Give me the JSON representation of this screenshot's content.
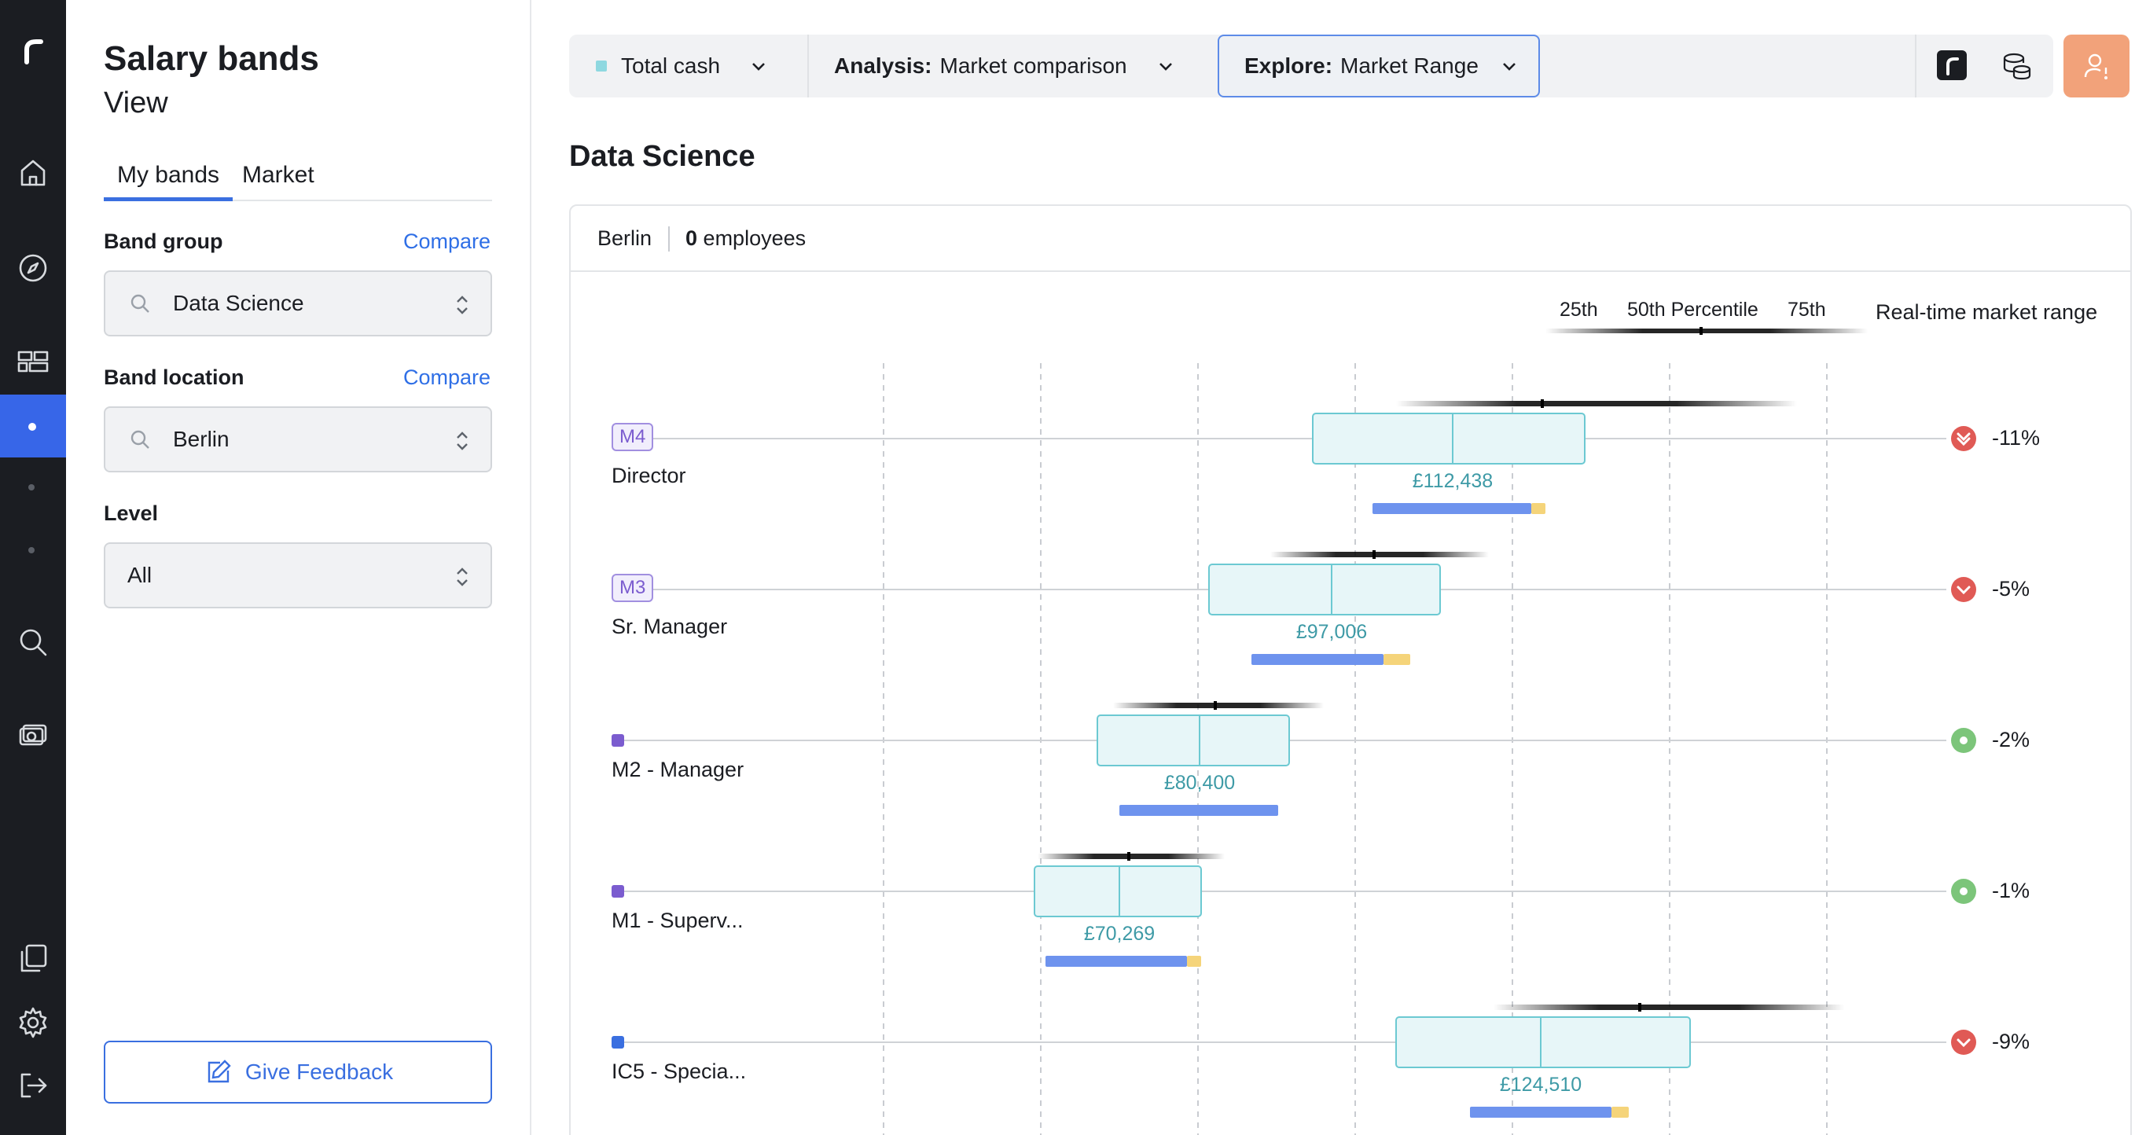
{
  "panel": {
    "title": "Salary bands",
    "subtitle": "View",
    "tabs": [
      "My bands",
      "Market"
    ],
    "band_group": {
      "label": "Band group",
      "compare": "Compare",
      "value": "Data Science"
    },
    "band_location": {
      "label": "Band location",
      "compare": "Compare",
      "value": "Berlin"
    },
    "level": {
      "label": "Level",
      "value": "All"
    },
    "feedback": "Give Feedback"
  },
  "rail": {
    "icons": [
      "logo-icon",
      "home-icon",
      "compass-icon",
      "bands-icon",
      "search-icon",
      "cash-icon",
      "documents-icon",
      "gear-icon",
      "logout-icon"
    ]
  },
  "toolbar": {
    "metric": "Total cash",
    "analysis_key": "Analysis:",
    "analysis_value": "Market comparison",
    "explore_key": "Explore:",
    "explore_value": "Market Range",
    "metric_color": "#8ed8e0"
  },
  "main": {
    "title": "Data Science",
    "location": "Berlin",
    "employees_count": "0",
    "employees_label": "employees",
    "legend": {
      "p25": "25th",
      "p50": "50th Percentile",
      "p75": "75th",
      "range": "Real-time market range"
    }
  },
  "colors": {
    "band_fill": "#e7f6f8",
    "band_stroke": "#6cc9d2",
    "bar_blue": "#6e93ee",
    "bar_yellow": "#f5d47a",
    "down": "#e05a55",
    "ok": "#7cc57a",
    "accent": "#3a6fe0"
  },
  "chart_data": {
    "type": "box",
    "rows": [
      {
        "badge": "M4",
        "name": "Director",
        "median_label": "£112,438",
        "change": "-11%",
        "status": "down-double"
      },
      {
        "badge": "M3",
        "name": "Sr. Manager",
        "median_label": "£97,006",
        "change": "-5%",
        "status": "down"
      },
      {
        "badge": "",
        "name": "M2 - Manager",
        "median_label": "£80,400",
        "change": "-2%",
        "status": "ok"
      },
      {
        "badge": "",
        "name": "M1 - Superv...",
        "median_label": "£70,269",
        "change": "-1%",
        "status": "ok"
      },
      {
        "badge": "",
        "name": "IC5 - Specia...",
        "median_label": "£124,510",
        "change": "-9%",
        "status": "down"
      }
    ]
  }
}
